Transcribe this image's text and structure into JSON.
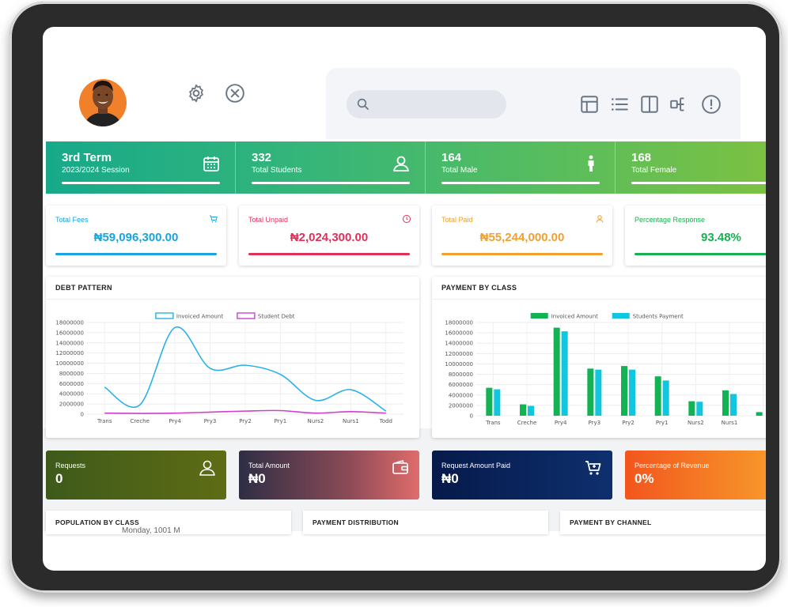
{
  "header": {
    "settings_icon": "gear-icon",
    "close_icon": "close-circle-icon",
    "search_placeholder": "",
    "toolbar_icons": [
      "table-icon",
      "list-icon",
      "columns-icon",
      "hierarchy-icon",
      "info-icon"
    ]
  },
  "stats": [
    {
      "value": "3rd Term",
      "label": "2023/2024 Session",
      "icon": "calendar-icon"
    },
    {
      "value": "332",
      "label": "Total Students",
      "icon": "user-icon"
    },
    {
      "value": "164",
      "label": "Total Male",
      "icon": "male-icon"
    },
    {
      "value": "168",
      "label": "Total Female",
      "icon": "female-icon"
    }
  ],
  "fees": [
    {
      "title": "Total Fees",
      "amount": "₦59,096,300.00",
      "color": "#1aa3df",
      "icon": "cart-icon"
    },
    {
      "title": "Total Unpaid",
      "amount": "₦2,024,300.00",
      "color": "#e0305a",
      "icon": "clock-icon"
    },
    {
      "title": "Total Paid",
      "amount": "₦55,244,000.00",
      "color": "#f0a030",
      "icon": "user-icon"
    },
    {
      "title": "Percentage Response",
      "amount": "93.48%",
      "color": "#18b050",
      "icon": ""
    }
  ],
  "debt_panel": {
    "title": "DEBT PATTERN"
  },
  "payment_panel": {
    "title": "PAYMENT BY CLASS"
  },
  "chart_data": [
    {
      "type": "line",
      "title": "DEBT PATTERN",
      "categories": [
        "Trans",
        "Creche",
        "Pry4",
        "Pry3",
        "Pry2",
        "Pry1",
        "Nurs2",
        "Nurs1",
        "Todd"
      ],
      "yticks": [
        "18000000",
        "16000000",
        "14000000",
        "12000000",
        "10000000",
        "8000000",
        "6000000",
        "4000000",
        "2000000",
        "0"
      ],
      "ylim": [
        0,
        18000000
      ],
      "legend": "top-center",
      "series": [
        {
          "name": "Invoiced Amount",
          "color": "#2ab2e8",
          "values": [
            5300000,
            1800000,
            17000000,
            9000000,
            9600000,
            7800000,
            2700000,
            4800000,
            600000
          ]
        },
        {
          "name": "Student Debt",
          "color": "#d040d0",
          "values": [
            200000,
            150000,
            200000,
            400000,
            600000,
            700000,
            200000,
            500000,
            200000
          ]
        }
      ]
    },
    {
      "type": "bar",
      "title": "PAYMENT BY CLASS",
      "categories": [
        "Trans",
        "Creche",
        "Pry4",
        "Pry3",
        "Pry2",
        "Pry1",
        "Nurs2",
        "Nurs1",
        ""
      ],
      "yticks": [
        "18000000",
        "16000000",
        "14000000",
        "12000000",
        "10000000",
        "8000000",
        "6000000",
        "4000000",
        "2000000",
        "0"
      ],
      "ylim": [
        0,
        18000000
      ],
      "legend": "top-center",
      "series": [
        {
          "name": "Invoiced Amount",
          "color": "#13b255",
          "values": [
            5400000,
            2200000,
            17000000,
            9100000,
            9600000,
            7600000,
            2800000,
            4900000,
            700000
          ]
        },
        {
          "name": "Students Payment",
          "color": "#12c6e0",
          "values": [
            5100000,
            1900000,
            16300000,
            8900000,
            8900000,
            6800000,
            2700000,
            4200000,
            0
          ]
        }
      ]
    }
  ],
  "gradient_cards": [
    {
      "title": "Requests",
      "value": "0",
      "icon": "user-outline-icon",
      "color": "#4b5e1e"
    },
    {
      "title": "Total Amount",
      "value": "₦0",
      "icon": "wallet-icon",
      "color": "#c45c5c"
    },
    {
      "title": "Request Amount Paid",
      "value": "₦0",
      "icon": "cart-icon",
      "color": "#0e2c6e"
    },
    {
      "title": "Percentage of Revenue",
      "value": "0%",
      "icon": "",
      "color": "#f28020"
    }
  ],
  "bottom_panels": [
    {
      "title": "POPULATION BY CLASS"
    },
    {
      "title": "PAYMENT DISTRIBUTION"
    },
    {
      "title": "PAYMENT BY CHANNEL"
    }
  ],
  "cut_text": "Monday, 1001 M"
}
